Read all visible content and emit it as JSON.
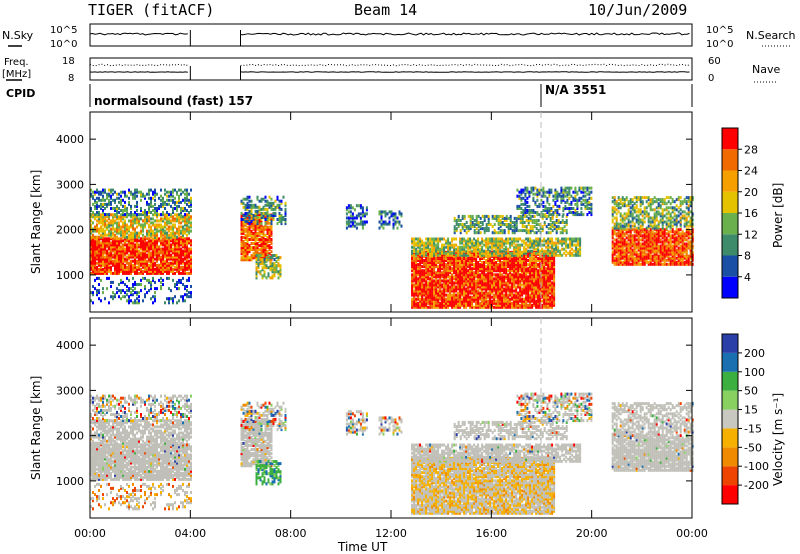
{
  "header": {
    "station": "TIGER (fitACF)",
    "beam": "Beam 14",
    "date": "10/Jun/2009"
  },
  "strip1": {
    "left_label": "N.Sky",
    "right_label": "N.Search",
    "left_ticks": [
      "10^5",
      "10^0"
    ],
    "right_ticks": [
      "10^5",
      "10^0"
    ]
  },
  "strip2": {
    "left_label_1": "Freq.",
    "left_label_2": "[MHz]",
    "right_label": "Nave",
    "left_ticks": [
      "18",
      "8"
    ],
    "right_ticks": [
      "60",
      "0"
    ]
  },
  "cpid": {
    "label": "CPID",
    "program_1": "normalsound (fast) 157",
    "program_2": "N/A 3551"
  },
  "colors": {
    "power_scale": [
      "#0000ff",
      "#1a4fa6",
      "#3d8b6b",
      "#6ab04c",
      "#e5c200",
      "#f5a000",
      "#f06a00",
      "#ff0000"
    ],
    "velocity_scale": [
      "#2a3fa8",
      "#1a6fb0",
      "#3bb040",
      "#88d060",
      "#c8c8c0",
      "#f5b000",
      "#f08a00",
      "#ee4400",
      "#ff0000"
    ],
    "ground_scatter": "#c0c0b8"
  },
  "chart_data": [
    {
      "type": "heatmap",
      "title": "Power",
      "xlabel": "",
      "ylabel": "Slant Range [km]",
      "x_ticks": [
        "00:00",
        "04:00",
        "08:00",
        "12:00",
        "16:00",
        "20:00",
        "00:00"
      ],
      "y_ticks": [
        "1000",
        "2000",
        "3000",
        "4000"
      ],
      "ylim": [
        180,
        4600
      ],
      "colorbar": {
        "label": "Power [dB]",
        "ticks": [
          "4",
          "8",
          "12",
          "16",
          "20",
          "24",
          "28"
        ],
        "range": [
          0,
          30
        ]
      },
      "data_gap_hours": [
        4.0,
        6.0
      ],
      "marker_hour": 18.0
    },
    {
      "type": "heatmap",
      "title": "Velocity",
      "xlabel": "Time UT",
      "ylabel": "Slant Range [km]",
      "x_ticks": [
        "00:00",
        "04:00",
        "08:00",
        "12:00",
        "16:00",
        "20:00",
        "00:00"
      ],
      "y_ticks": [
        "1000",
        "2000",
        "3000",
        "4000"
      ],
      "ylim": [
        180,
        4600
      ],
      "colorbar": {
        "label": "Velocity [m s⁻¹]",
        "ticks": [
          "200",
          "100",
          "50",
          "15",
          "-15",
          "-50",
          "-100",
          "-200"
        ],
        "range": [
          -250,
          250
        ]
      },
      "data_gap_hours": [
        4.0,
        6.0
      ],
      "marker_hour": 18.0
    }
  ]
}
